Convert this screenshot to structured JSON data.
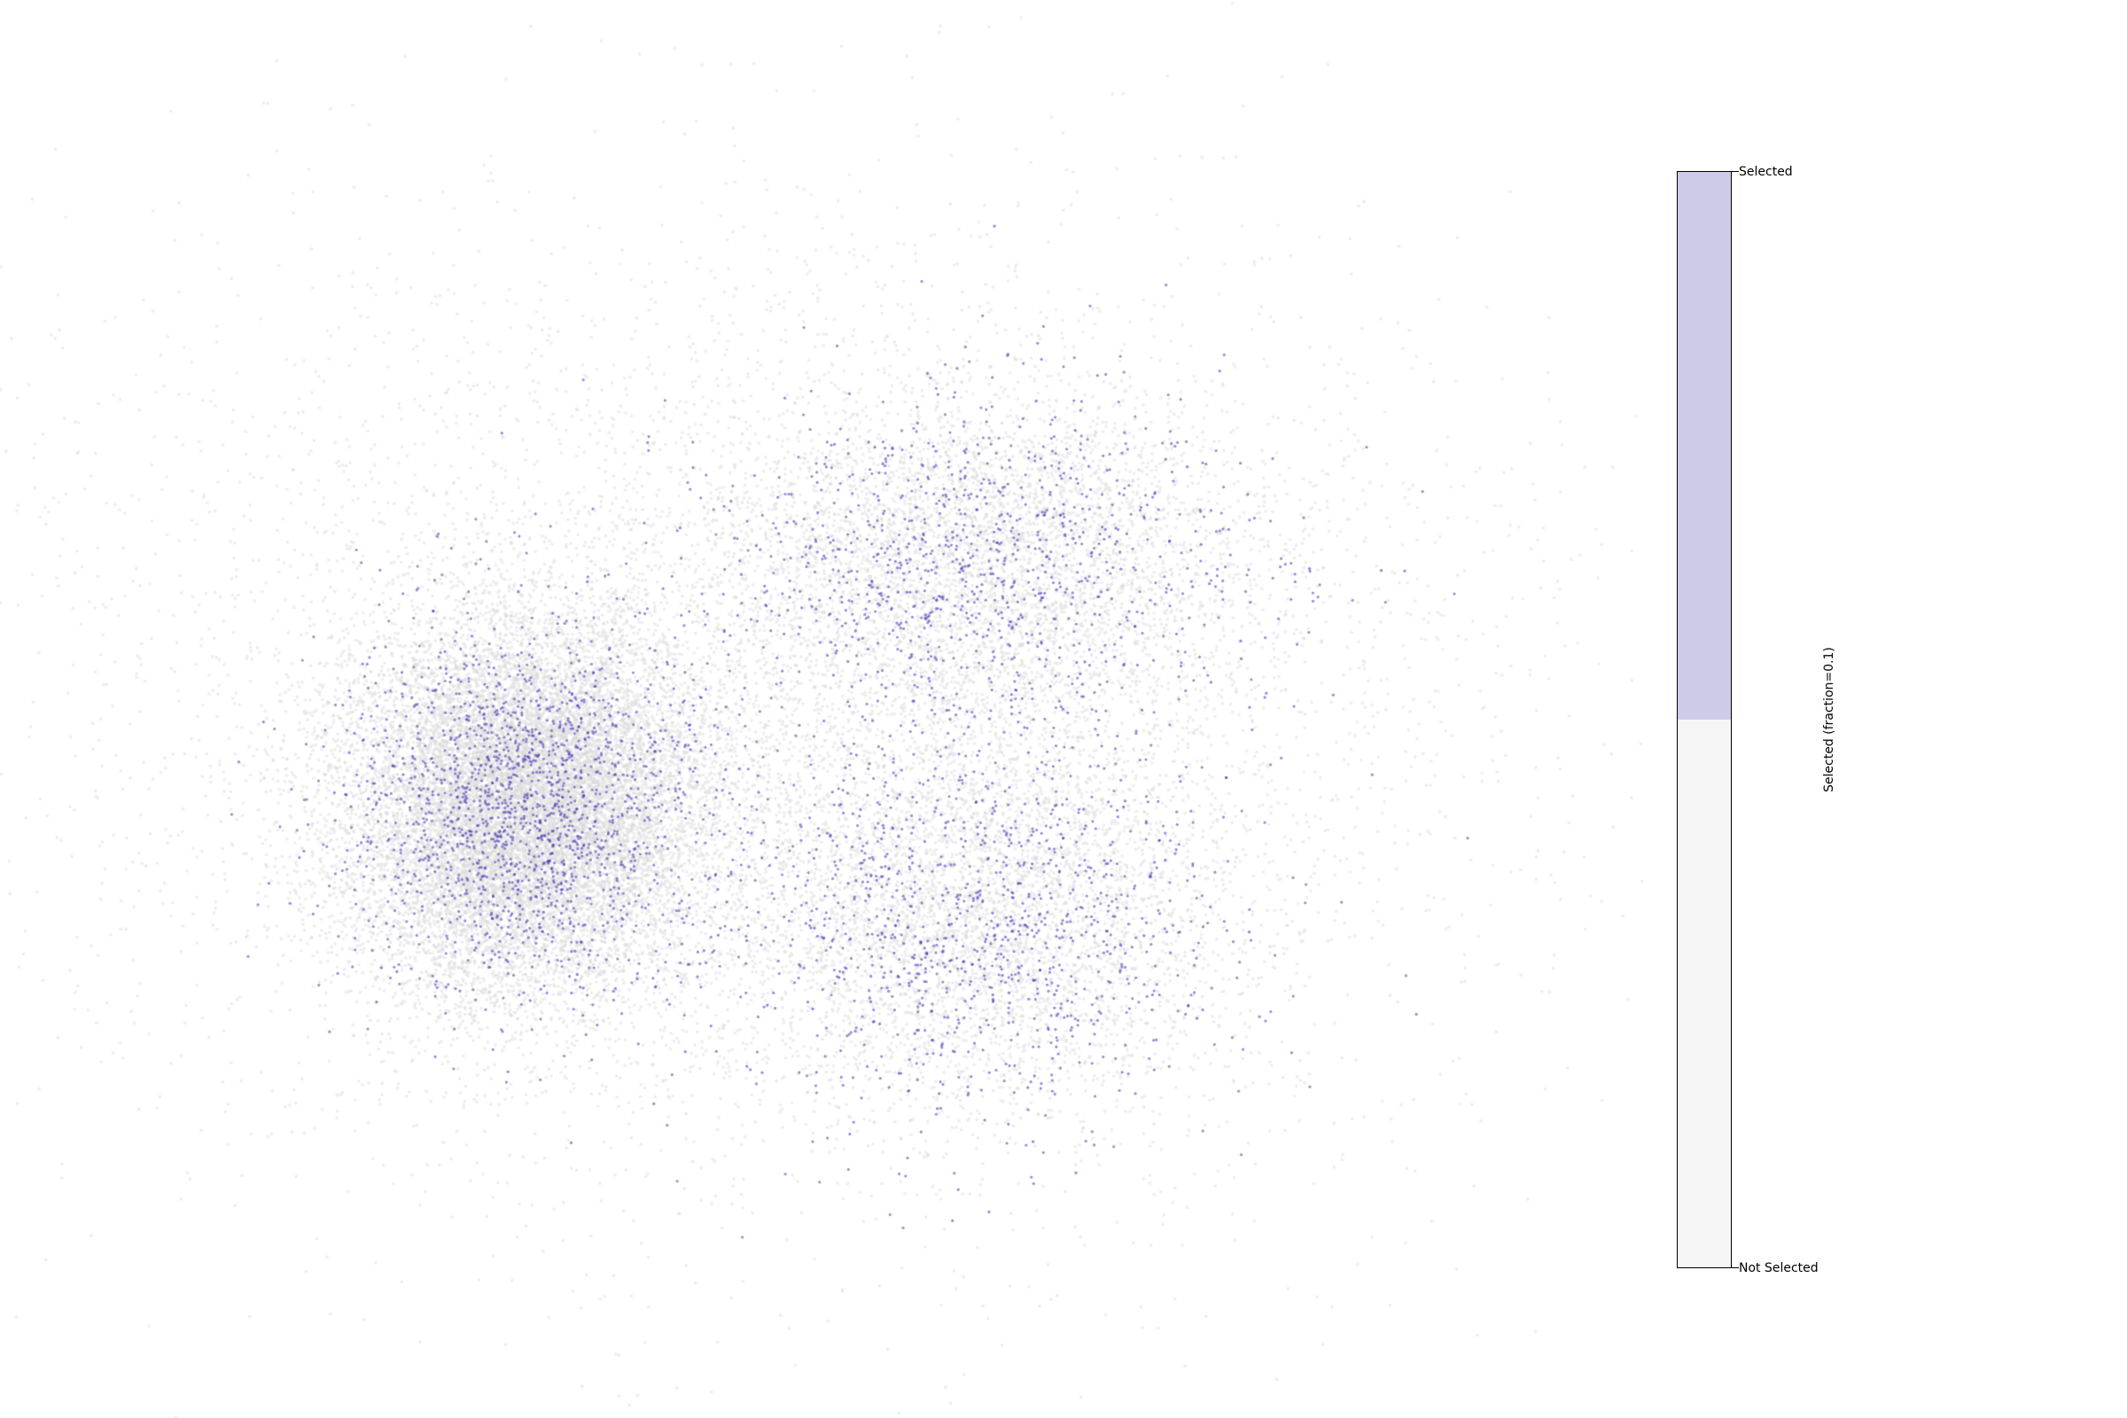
{
  "chart_data": {
    "type": "scatter",
    "title": "",
    "xlabel": "",
    "ylabel": "",
    "axes_visible": false,
    "grid": false,
    "colors": {
      "selected": "#3f2fb0",
      "not_selected": "#d9d9d9",
      "colorbar_selected": "#cccce8",
      "colorbar_not_selected": "#f5f5f5"
    },
    "clusters": [
      {
        "name": "left",
        "center": [
          0.18,
          0.58
        ],
        "spread": [
          0.07,
          0.085
        ],
        "density": "high",
        "selected_fraction": 0.12
      },
      {
        "name": "upper-right",
        "center": [
          0.54,
          0.36
        ],
        "spread": [
          0.11,
          0.08
        ],
        "density": "medium",
        "selected_fraction": 0.22
      },
      {
        "name": "lower-right",
        "center": [
          0.53,
          0.68
        ],
        "spread": [
          0.1,
          0.09
        ],
        "density": "medium",
        "selected_fraction": 0.24
      },
      {
        "name": "halo",
        "center": [
          0.38,
          0.5
        ],
        "spread": [
          0.28,
          0.22
        ],
        "density": "low",
        "selected_fraction": 0.0
      }
    ],
    "colorbar": {
      "label": "Selected (fraction=0.1)",
      "ticks": [
        "Selected",
        "Not Selected"
      ],
      "categories": [
        "Selected",
        "Not Selected"
      ]
    }
  }
}
